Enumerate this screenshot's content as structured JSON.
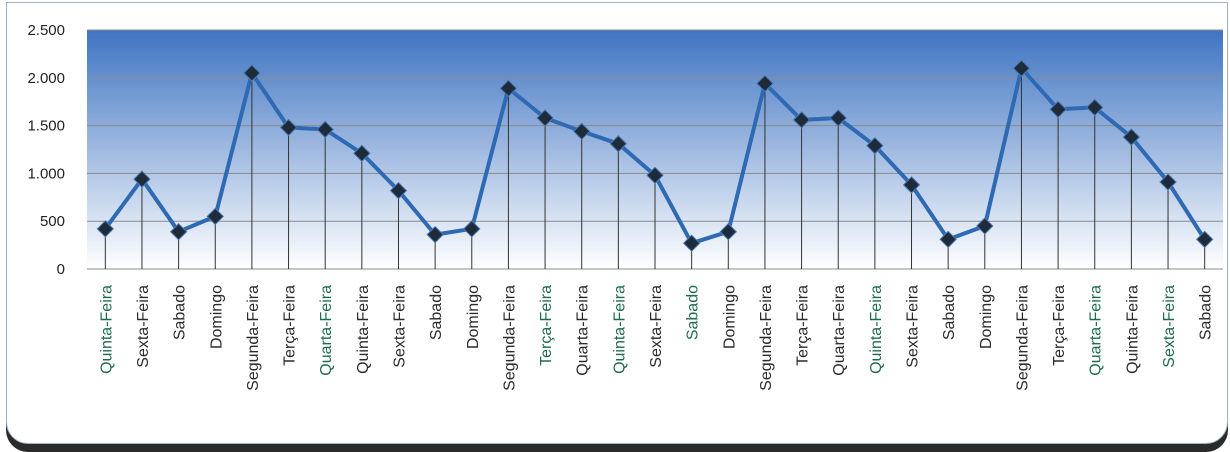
{
  "colors": {
    "plot_top": "#3f74c2",
    "plot_bottom": "#ffffff",
    "line": "#2e6ab4",
    "marker": "#1d2b3a",
    "drop_line": "#333333",
    "grid": "#8b8b8b",
    "tick_label_green": "#1f6b4f",
    "tick_label_dark": "#2b2b2b"
  },
  "chart_data": {
    "type": "line",
    "title": "",
    "xlabel": "",
    "ylabel": "",
    "ylim": [
      0,
      2500
    ],
    "yticks": [
      0,
      500,
      1000,
      1500,
      2000,
      2500
    ],
    "ytick_labels": [
      "0",
      "500",
      "1.000",
      "1.500",
      "2.000",
      "2.500"
    ],
    "grid": true,
    "drop_lines": true,
    "categories": [
      "Quinta-Feira",
      "Sexta-Feira",
      "Sabado",
      "Domingo",
      "Segunda-Feira",
      "Terça-Feira",
      "Quarta-Feira",
      "Quinta-Feira",
      "Sexta-Feira",
      "Sabado",
      "Domingo",
      "Segunda-Feira",
      "Terça-Feira",
      "Quarta-Feira",
      "Quinta-Feira",
      "Sexta-Feira",
      "Sabado",
      "Domingo",
      "Segunda-Feira",
      "Terça-Feira",
      "Quarta-Feira",
      "Quinta-Feira",
      "Sexta-Feira",
      "Sabado",
      "Domingo",
      "Segunda-Feira",
      "Terça-Feira",
      "Quarta-Feira",
      "Quinta-Feira",
      "Sexta-Feira",
      "Sabado"
    ],
    "label_tone": [
      "green",
      "dark",
      "dark",
      "dark",
      "dark",
      "dark",
      "green",
      "dark",
      "dark",
      "dark",
      "dark",
      "dark",
      "green",
      "dark",
      "green",
      "dark",
      "green",
      "dark",
      "dark",
      "dark",
      "dark",
      "green",
      "dark",
      "dark",
      "dark",
      "dark",
      "dark",
      "green",
      "dark",
      "green",
      "dark"
    ],
    "series": [
      {
        "values": [
          420,
          940,
          390,
          550,
          2050,
          1480,
          1460,
          1210,
          820,
          360,
          420,
          1890,
          1580,
          1440,
          1310,
          980,
          270,
          390,
          1940,
          1560,
          1580,
          1290,
          880,
          310,
          450,
          2100,
          1670,
          1690,
          1380,
          910,
          310
        ]
      }
    ]
  }
}
